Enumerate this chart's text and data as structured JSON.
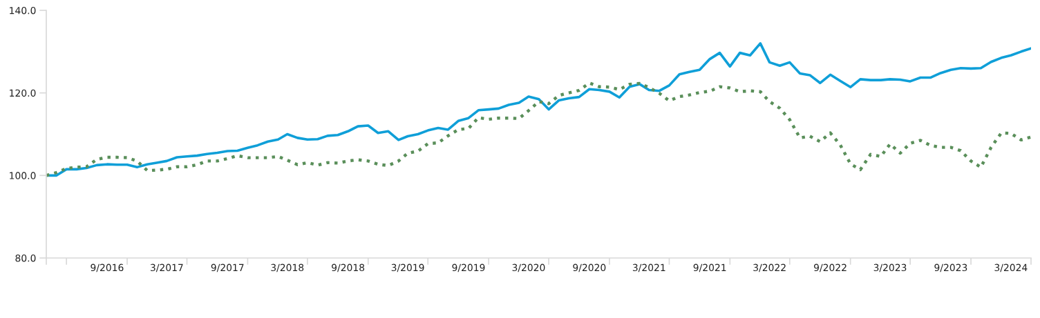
{
  "chart_data": {
    "type": "line",
    "x": [
      "2016-03",
      "2016-04",
      "2016-05",
      "2016-06",
      "2016-07",
      "2016-08",
      "2016-09",
      "2016-10",
      "2016-11",
      "2016-12",
      "2017-01",
      "2017-02",
      "2017-03",
      "2017-04",
      "2017-05",
      "2017-06",
      "2017-07",
      "2017-08",
      "2017-09",
      "2017-10",
      "2017-11",
      "2017-12",
      "2018-01",
      "2018-02",
      "2018-03",
      "2018-04",
      "2018-05",
      "2018-06",
      "2018-07",
      "2018-08",
      "2018-09",
      "2018-10",
      "2018-11",
      "2018-12",
      "2019-01",
      "2019-02",
      "2019-03",
      "2019-04",
      "2019-05",
      "2019-06",
      "2019-07",
      "2019-08",
      "2019-09",
      "2019-10",
      "2019-11",
      "2019-12",
      "2020-01",
      "2020-02",
      "2020-03",
      "2020-04",
      "2020-05",
      "2020-06",
      "2020-07",
      "2020-08",
      "2020-09",
      "2020-10",
      "2020-11",
      "2020-12",
      "2021-01",
      "2021-02",
      "2021-03",
      "2021-04",
      "2021-05",
      "2021-06",
      "2021-07",
      "2021-08",
      "2021-09",
      "2021-10",
      "2021-11",
      "2021-12",
      "2022-01",
      "2022-02",
      "2022-03",
      "2022-04",
      "2022-05",
      "2022-06",
      "2022-07",
      "2022-08",
      "2022-09",
      "2022-10",
      "2022-11",
      "2022-12",
      "2023-01",
      "2023-02",
      "2023-03",
      "2023-04",
      "2023-05",
      "2023-06",
      "2023-07",
      "2023-08",
      "2023-09",
      "2023-10",
      "2023-11",
      "2023-12",
      "2024-01",
      "2024-02",
      "2024-03",
      "2024-04",
      "2024-05"
    ],
    "series": [
      {
        "color": "#0f9fd8",
        "line_style": "solid",
        "values": [
          100,
          100,
          101.5,
          101.5,
          101.8,
          102.5,
          102.7,
          102.6,
          102.6,
          102.0,
          102.7,
          103.1,
          103.5,
          104.4,
          104.6,
          104.8,
          105.2,
          105.5,
          105.9,
          106.0,
          106.7,
          107.3,
          108.2,
          108.7,
          110.0,
          109.1,
          108.7,
          108.8,
          109.6,
          109.8,
          110.7,
          111.9,
          112.1,
          110.3,
          110.7,
          108.6,
          109.5,
          110.0,
          110.9,
          111.5,
          111.1,
          113.2,
          113.9,
          115.8,
          116.0,
          116.2,
          117.1,
          117.6,
          119.1,
          118.5,
          116.0,
          118.2,
          118.7,
          119.0,
          120.9,
          120.7,
          120.3,
          118.9,
          121.5,
          122.1,
          120.7,
          120.5,
          121.8,
          124.5,
          125.1,
          125.6,
          128.2,
          129.7,
          126.4,
          129.7,
          129.1,
          132.0,
          127.4,
          126.6,
          127.4,
          124.7,
          124.3,
          122.4,
          124.4,
          122.9,
          121.4,
          123.3,
          123.1,
          123.1,
          123.3,
          123.2,
          122.8,
          123.7,
          123.7,
          124.8,
          125.6,
          126.0,
          125.9,
          126.0,
          127.5,
          128.5,
          129.1,
          130.0,
          130.8
        ]
      },
      {
        "color": "#5a8f5a",
        "line_style": "dotted",
        "values": [
          100,
          100.7,
          101.7,
          102.0,
          102.1,
          103.9,
          104.4,
          104.4,
          104.3,
          103.5,
          101.2,
          101.3,
          101.5,
          102.1,
          102.1,
          102.6,
          103.5,
          103.5,
          104.1,
          104.8,
          104.3,
          104.3,
          104.3,
          104.6,
          103.7,
          102.6,
          103.1,
          102.5,
          103.1,
          103.0,
          103.5,
          103.8,
          103.5,
          102.7,
          102.4,
          103.5,
          105.4,
          105.9,
          107.7,
          107.9,
          109.6,
          111.1,
          111.4,
          114.0,
          113.6,
          113.9,
          113.9,
          113.8,
          115.7,
          117.9,
          117.4,
          119.4,
          120.0,
          120.6,
          122.4,
          121.5,
          121.4,
          120.8,
          122.1,
          122.3,
          121.3,
          119.9,
          118.1,
          119.1,
          119.5,
          120.1,
          120.4,
          121.5,
          121.2,
          120.3,
          120.5,
          120.3,
          117.9,
          116.3,
          113.5,
          109.1,
          109.5,
          108.2,
          110.3,
          107.4,
          102.8,
          101.4,
          105.1,
          104.6,
          107.6,
          105.4,
          107.8,
          108.5,
          107.3,
          106.8,
          106.8,
          106.0,
          103.5,
          102.0,
          106.8,
          110.3,
          110.2,
          108.6,
          109.3
        ]
      }
    ],
    "xlim": [
      "2016-03",
      "2024-05"
    ],
    "xticks": [
      {
        "value": "2016-03",
        "label": null
      },
      {
        "value": "2016-05",
        "label": null
      },
      {
        "value": "2016-09",
        "label": "9/2016"
      },
      {
        "value": "2016-11",
        "label": null
      },
      {
        "value": "2017-03",
        "label": "3/2017"
      },
      {
        "value": "2017-05",
        "label": null
      },
      {
        "value": "2017-09",
        "label": "9/2017"
      },
      {
        "value": "2017-11",
        "label": null
      },
      {
        "value": "2018-03",
        "label": "3/2018"
      },
      {
        "value": "2018-05",
        "label": null
      },
      {
        "value": "2018-09",
        "label": "9/2018"
      },
      {
        "value": "2018-11",
        "label": null
      },
      {
        "value": "2019-03",
        "label": "3/2019"
      },
      {
        "value": "2019-05",
        "label": null
      },
      {
        "value": "2019-09",
        "label": "9/2019"
      },
      {
        "value": "2019-11",
        "label": null
      },
      {
        "value": "2020-03",
        "label": "3/2020"
      },
      {
        "value": "2020-05",
        "label": null
      },
      {
        "value": "2020-09",
        "label": "9/2020"
      },
      {
        "value": "2020-11",
        "label": null
      },
      {
        "value": "2021-03",
        "label": "3/2021"
      },
      {
        "value": "2021-05",
        "label": null
      },
      {
        "value": "2021-09",
        "label": "9/2021"
      },
      {
        "value": "2021-11",
        "label": null
      },
      {
        "value": "2022-03",
        "label": "3/2022"
      },
      {
        "value": "2022-05",
        "label": null
      },
      {
        "value": "2022-09",
        "label": "9/2022"
      },
      {
        "value": "2022-11",
        "label": null
      },
      {
        "value": "2023-03",
        "label": "3/2023"
      },
      {
        "value": "2023-05",
        "label": null
      },
      {
        "value": "2023-09",
        "label": "9/2023"
      },
      {
        "value": "2023-11",
        "label": null
      },
      {
        "value": "2024-03",
        "label": "3/2024"
      },
      {
        "value": "2024-05",
        "label": null
      }
    ],
    "ylim": [
      80,
      140
    ],
    "yticks": [
      {
        "value": 80,
        "label": "80.0"
      },
      {
        "value": 100,
        "label": "100.0"
      },
      {
        "value": 120,
        "label": "120.0"
      },
      {
        "value": 140,
        "label": "140.0"
      }
    ],
    "grid": false
  }
}
